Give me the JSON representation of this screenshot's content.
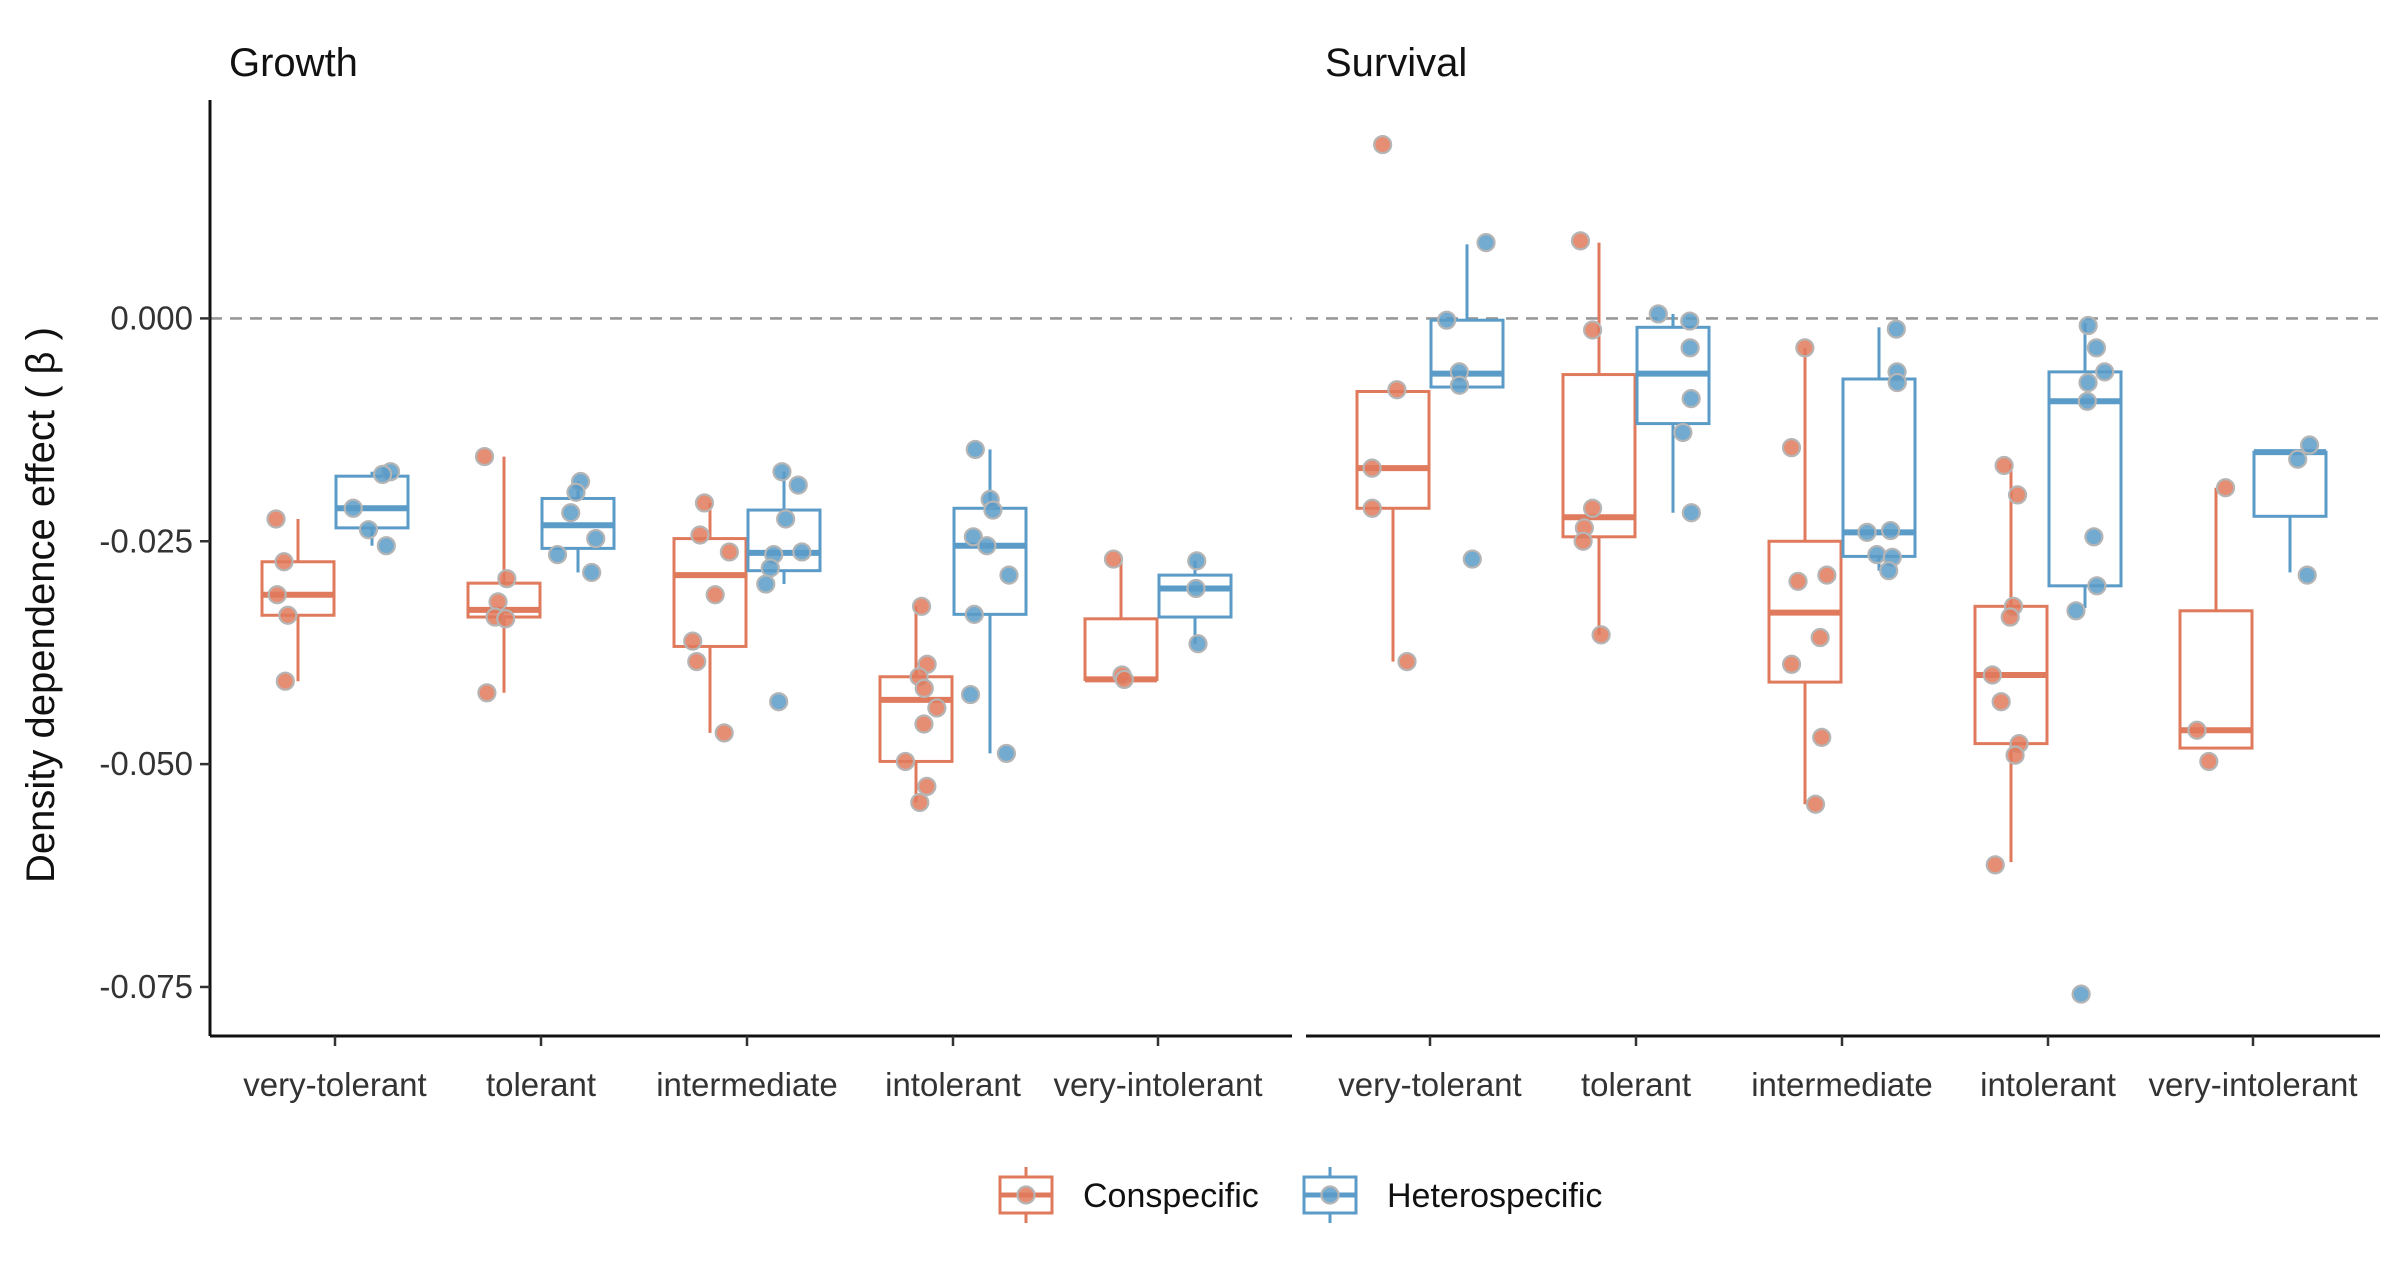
{
  "chart_data": {
    "type": "box",
    "ylabel": "Density dependence effect ( β )",
    "ylim": [
      -0.0805,
      0.0245
    ],
    "yticks": [
      0.0,
      -0.025,
      -0.05,
      -0.075
    ],
    "ytick_labels": [
      "0.000",
      "-0.025",
      "-0.050",
      "-0.075"
    ],
    "reference_line": {
      "y": 0.0,
      "style": "dashed",
      "color": "#999999"
    },
    "categories": [
      "very-tolerant",
      "tolerant",
      "intermediate",
      "intolerant",
      "very-intolerant"
    ],
    "series_colors": {
      "Conspecific": "#E07A5C",
      "Heterospecific": "#5B9BC8"
    },
    "point_color": "#B5B5B5",
    "legend": {
      "position": "bottom",
      "entries": [
        "Conspecific",
        "Heterospecific"
      ]
    },
    "panels": [
      {
        "title": "Growth",
        "boxes": [
          {
            "category": "very-tolerant",
            "series": "Conspecific",
            "lower_whisker": -0.0407,
            "q1": -0.0333,
            "median": -0.031,
            "q3": -0.0273,
            "upper_whisker": -0.0225,
            "points": [
              -0.0225,
              -0.0273,
              -0.031,
              -0.0333,
              -0.0407
            ]
          },
          {
            "category": "very-tolerant",
            "series": "Heterospecific",
            "lower_whisker": -0.0255,
            "q1": -0.0235,
            "median": -0.0213,
            "q3": -0.0177,
            "upper_whisker": -0.0172,
            "points": [
              -0.0172,
              -0.0175,
              -0.0213,
              -0.0237,
              -0.0255
            ]
          },
          {
            "category": "tolerant",
            "series": "Conspecific",
            "lower_whisker": -0.042,
            "q1": -0.0335,
            "median": -0.0327,
            "q3": -0.0297,
            "upper_whisker": -0.0155,
            "points": [
              -0.0155,
              -0.0292,
              -0.0318,
              -0.0335,
              -0.0337,
              -0.042
            ]
          },
          {
            "category": "tolerant",
            "series": "Heterospecific",
            "lower_whisker": -0.0285,
            "q1": -0.0258,
            "median": -0.0232,
            "q3": -0.0202,
            "upper_whisker": -0.0183,
            "points": [
              -0.0183,
              -0.0195,
              -0.0218,
              -0.0247,
              -0.0265,
              -0.0285
            ]
          },
          {
            "category": "intermediate",
            "series": "Conspecific",
            "lower_whisker": -0.0465,
            "q1": -0.0368,
            "median": -0.0288,
            "q3": -0.0247,
            "upper_whisker": -0.0207,
            "points": [
              -0.0207,
              -0.0243,
              -0.0262,
              -0.031,
              -0.0362,
              -0.0385,
              -0.0465
            ]
          },
          {
            "category": "intermediate",
            "series": "Heterospecific",
            "lower_whisker": -0.0298,
            "q1": -0.0283,
            "median": -0.0263,
            "q3": -0.0215,
            "upper_whisker": -0.0172,
            "points": [
              -0.0172,
              -0.0187,
              -0.0225,
              -0.0262,
              -0.0265,
              -0.028,
              -0.0298,
              -0.043
            ]
          },
          {
            "category": "intolerant",
            "series": "Conspecific",
            "lower_whisker": -0.0543,
            "q1": -0.0497,
            "median": -0.0428,
            "q3": -0.0402,
            "upper_whisker": -0.0323,
            "points": [
              -0.0323,
              -0.0388,
              -0.0402,
              -0.0415,
              -0.0437,
              -0.0455,
              -0.0497,
              -0.0525,
              -0.0543
            ]
          },
          {
            "category": "intolerant",
            "series": "Heterospecific",
            "lower_whisker": -0.0488,
            "q1": -0.0332,
            "median": -0.0255,
            "q3": -0.0213,
            "upper_whisker": -0.0147,
            "points": [
              -0.0147,
              -0.0203,
              -0.0215,
              -0.0245,
              -0.0255,
              -0.0288,
              -0.0332,
              -0.0422,
              -0.0488
            ]
          },
          {
            "category": "very-intolerant",
            "series": "Conspecific",
            "lower_whisker": -0.0405,
            "q1": -0.0405,
            "median": -0.0405,
            "q3": -0.0337,
            "upper_whisker": -0.027,
            "points": [
              -0.027,
              -0.04,
              -0.0405
            ]
          },
          {
            "category": "very-intolerant",
            "series": "Heterospecific",
            "lower_whisker": -0.0365,
            "q1": -0.0335,
            "median": -0.0303,
            "q3": -0.0288,
            "upper_whisker": -0.0272,
            "points": [
              -0.0272,
              -0.0303,
              -0.0365
            ]
          }
        ]
      },
      {
        "title": "Survival",
        "boxes": [
          {
            "category": "very-tolerant",
            "series": "Conspecific",
            "lower_whisker": -0.0385,
            "q1": -0.0213,
            "median": -0.0168,
            "q3": -0.0082,
            "upper_whisker": -0.0082,
            "points": [
              0.0195,
              -0.008,
              -0.0168,
              -0.0213,
              -0.0385
            ]
          },
          {
            "category": "very-tolerant",
            "series": "Heterospecific",
            "lower_whisker": -0.0077,
            "q1": -0.0077,
            "median": -0.0062,
            "q3": -0.0002,
            "upper_whisker": 0.0083,
            "points": [
              0.0085,
              -0.0002,
              -0.006,
              -0.0075,
              -0.027
            ]
          },
          {
            "category": "tolerant",
            "series": "Conspecific",
            "lower_whisker": -0.0355,
            "q1": -0.0245,
            "median": -0.0223,
            "q3": -0.0063,
            "upper_whisker": 0.0085,
            "points": [
              0.0087,
              -0.0013,
              -0.0213,
              -0.0235,
              -0.025,
              -0.0355
            ]
          },
          {
            "category": "tolerant",
            "series": "Heterospecific",
            "lower_whisker": -0.0218,
            "q1": -0.0118,
            "median": -0.0062,
            "q3": -0.001,
            "upper_whisker": 0.0005,
            "points": [
              0.0005,
              -0.0003,
              -0.0033,
              -0.009,
              -0.0128,
              -0.0218
            ]
          },
          {
            "category": "intermediate",
            "series": "Conspecific",
            "lower_whisker": -0.0545,
            "q1": -0.0408,
            "median": -0.033,
            "q3": -0.025,
            "upper_whisker": -0.0033,
            "points": [
              -0.0033,
              -0.0145,
              -0.0288,
              -0.0295,
              -0.0358,
              -0.0388,
              -0.047,
              -0.0545
            ]
          },
          {
            "category": "intermediate",
            "series": "Heterospecific",
            "lower_whisker": -0.0283,
            "q1": -0.0267,
            "median": -0.024,
            "q3": -0.0068,
            "upper_whisker": -0.001,
            "points": [
              -0.0012,
              -0.006,
              -0.0072,
              -0.0238,
              -0.024,
              -0.0265,
              -0.0268,
              -0.0283
            ]
          },
          {
            "category": "intolerant",
            "series": "Conspecific",
            "lower_whisker": -0.061,
            "q1": -0.0477,
            "median": -0.04,
            "q3": -0.0323,
            "upper_whisker": -0.0163,
            "points": [
              -0.0165,
              -0.0198,
              -0.0323,
              -0.0335,
              -0.04,
              -0.043,
              -0.0477,
              -0.049,
              -0.0613
            ]
          },
          {
            "category": "intolerant",
            "series": "Heterospecific",
            "lower_whisker": -0.0325,
            "q1": -0.03,
            "median": -0.0093,
            "q3": -0.006,
            "upper_whisker": -0.0005,
            "points": [
              -0.0008,
              -0.0033,
              -0.006,
              -0.0072,
              -0.0093,
              -0.0245,
              -0.03,
              -0.0328,
              -0.0758
            ]
          },
          {
            "category": "very-intolerant",
            "series": "Conspecific",
            "lower_whisker": -0.0482,
            "q1": -0.0482,
            "median": -0.0462,
            "q3": -0.0328,
            "upper_whisker": -0.019,
            "points": [
              -0.019,
              -0.0462,
              -0.0497
            ]
          },
          {
            "category": "very-intolerant",
            "series": "Heterospecific",
            "lower_whisker": -0.0285,
            "q1": -0.0222,
            "median": -0.015,
            "q3": -0.015,
            "upper_whisker": -0.015,
            "points": [
              -0.0142,
              -0.0158,
              -0.0288
            ]
          }
        ]
      }
    ]
  }
}
